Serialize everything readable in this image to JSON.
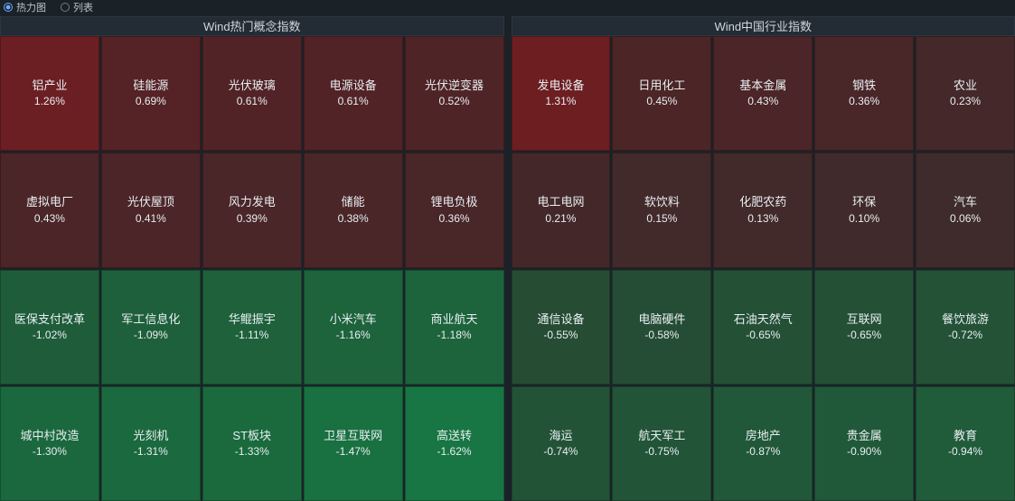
{
  "topbar": {
    "option1_label": "热力图",
    "option2_label": "列表",
    "selected_index": 0
  },
  "style": {
    "background": "#1a2228",
    "text_color": "#e8eef2",
    "header_bg": "#232c34",
    "header_border": "#2d3640",
    "name_fontsize": 13,
    "pct_fontsize": 12
  },
  "panels": [
    {
      "title": "Wind热门概念指数",
      "grid": {
        "cols": 5,
        "rows": 4
      },
      "tiles": [
        {
          "name": "铝产业",
          "pct": "1.26%",
          "value": 1.26,
          "bg": "#6b1f22"
        },
        {
          "name": "硅能源",
          "pct": "0.69%",
          "value": 0.69,
          "bg": "#552225"
        },
        {
          "name": "光伏玻璃",
          "pct": "0.61%",
          "value": 0.61,
          "bg": "#522326"
        },
        {
          "name": "电源设备",
          "pct": "0.61%",
          "value": 0.61,
          "bg": "#522326"
        },
        {
          "name": "光伏逆变器",
          "pct": "0.52%",
          "value": 0.52,
          "bg": "#4f2427"
        },
        {
          "name": "虚拟电厂",
          "pct": "0.43%",
          "value": 0.43,
          "bg": "#4b2527"
        },
        {
          "name": "光伏屋顶",
          "pct": "0.41%",
          "value": 0.41,
          "bg": "#4b2527"
        },
        {
          "name": "风力发电",
          "pct": "0.39%",
          "value": 0.39,
          "bg": "#4a2628"
        },
        {
          "name": "储能",
          "pct": "0.38%",
          "value": 0.38,
          "bg": "#4a2628"
        },
        {
          "name": "锂电负极",
          "pct": "0.36%",
          "value": 0.36,
          "bg": "#492628"
        },
        {
          "name": "医保支付改革",
          "pct": "-1.02%",
          "value": -1.02,
          "bg": "#1f5d3a"
        },
        {
          "name": "军工信息化",
          "pct": "-1.09%",
          "value": -1.09,
          "bg": "#1e603b"
        },
        {
          "name": "华鲲振宇",
          "pct": "-1.11%",
          "value": -1.11,
          "bg": "#1e613b"
        },
        {
          "name": "小米汽车",
          "pct": "-1.16%",
          "value": -1.16,
          "bg": "#1d633c"
        },
        {
          "name": "商业航天",
          "pct": "-1.18%",
          "value": -1.18,
          "bg": "#1d643c"
        },
        {
          "name": "城中村改造",
          "pct": "-1.30%",
          "value": -1.3,
          "bg": "#1b683e"
        },
        {
          "name": "光刻机",
          "pct": "-1.31%",
          "value": -1.31,
          "bg": "#1b693e"
        },
        {
          "name": "ST板块",
          "pct": "-1.33%",
          "value": -1.33,
          "bg": "#1a6a3e"
        },
        {
          "name": "卫星互联网",
          "pct": "-1.47%",
          "value": -1.47,
          "bg": "#197040"
        },
        {
          "name": "高送转",
          "pct": "-1.62%",
          "value": -1.62,
          "bg": "#177643"
        }
      ]
    },
    {
      "title": "Wind中国行业指数",
      "grid": {
        "cols": 5,
        "rows": 4
      },
      "tiles": [
        {
          "name": "发电设备",
          "pct": "1.31%",
          "value": 1.31,
          "bg": "#6d1e21"
        },
        {
          "name": "日用化工",
          "pct": "0.45%",
          "value": 0.45,
          "bg": "#4c2527"
        },
        {
          "name": "基本金属",
          "pct": "0.43%",
          "value": 0.43,
          "bg": "#4b2527"
        },
        {
          "name": "钢铁",
          "pct": "0.36%",
          "value": 0.36,
          "bg": "#492628"
        },
        {
          "name": "农业",
          "pct": "0.23%",
          "value": 0.23,
          "bg": "#452829"
        },
        {
          "name": "电工电网",
          "pct": "0.21%",
          "value": 0.21,
          "bg": "#442829"
        },
        {
          "name": "软饮料",
          "pct": "0.15%",
          "value": 0.15,
          "bg": "#42292a"
        },
        {
          "name": "化肥农药",
          "pct": "0.13%",
          "value": 0.13,
          "bg": "#42292a"
        },
        {
          "name": "环保",
          "pct": "0.10%",
          "value": 0.1,
          "bg": "#412a2b"
        },
        {
          "name": "汽车",
          "pct": "0.06%",
          "value": 0.06,
          "bg": "#3f2b2b"
        },
        {
          "name": "通信设备",
          "pct": "-0.55%",
          "value": -0.55,
          "bg": "#264c34"
        },
        {
          "name": "电脑硬件",
          "pct": "-0.58%",
          "value": -0.58,
          "bg": "#254d35"
        },
        {
          "name": "石油天然气",
          "pct": "-0.65%",
          "value": -0.65,
          "bg": "#245036"
        },
        {
          "name": "互联网",
          "pct": "-0.65%",
          "value": -0.65,
          "bg": "#245036"
        },
        {
          "name": "餐饮旅游",
          "pct": "-0.72%",
          "value": -0.72,
          "bg": "#235237"
        },
        {
          "name": "海运",
          "pct": "-0.74%",
          "value": -0.74,
          "bg": "#235337"
        },
        {
          "name": "航天军工",
          "pct": "-0.75%",
          "value": -0.75,
          "bg": "#225437"
        },
        {
          "name": "房地产",
          "pct": "-0.87%",
          "value": -0.87,
          "bg": "#215839"
        },
        {
          "name": "贵金属",
          "pct": "-0.90%",
          "value": -0.9,
          "bg": "#205939"
        },
        {
          "name": "教育",
          "pct": "-0.94%",
          "value": -0.94,
          "bg": "#205b3a"
        }
      ]
    }
  ]
}
